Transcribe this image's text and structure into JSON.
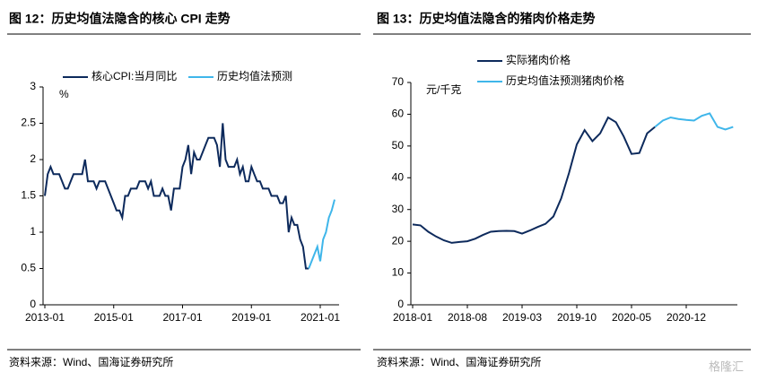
{
  "chart_data": [
    {
      "type": "line",
      "title": "图 12：历史均值法隐含的核心 CPI 走势",
      "y_label": "%",
      "legend": "top",
      "source": "资料来源：Wind、国海证券研究所",
      "x": [
        "2013-01",
        "2013-02",
        "2013-03",
        "2013-04",
        "2013-05",
        "2013-06",
        "2013-07",
        "2013-08",
        "2013-09",
        "2013-10",
        "2013-11",
        "2013-12",
        "2014-01",
        "2014-02",
        "2014-03",
        "2014-04",
        "2014-05",
        "2014-06",
        "2014-07",
        "2014-08",
        "2014-09",
        "2014-10",
        "2014-11",
        "2014-12",
        "2015-01",
        "2015-02",
        "2015-03",
        "2015-04",
        "2015-05",
        "2015-06",
        "2015-07",
        "2015-08",
        "2015-09",
        "2015-10",
        "2015-11",
        "2015-12",
        "2016-01",
        "2016-02",
        "2016-03",
        "2016-04",
        "2016-05",
        "2016-06",
        "2016-07",
        "2016-08",
        "2016-09",
        "2016-10",
        "2016-11",
        "2016-12",
        "2017-01",
        "2017-02",
        "2017-03",
        "2017-04",
        "2017-05",
        "2017-06",
        "2017-07",
        "2017-08",
        "2017-09",
        "2017-10",
        "2017-11",
        "2017-12",
        "2018-01",
        "2018-02",
        "2018-03",
        "2018-04",
        "2018-05",
        "2018-06",
        "2018-07",
        "2018-08",
        "2018-09",
        "2018-10",
        "2018-11",
        "2018-12",
        "2019-01",
        "2019-02",
        "2019-03",
        "2019-04",
        "2019-05",
        "2019-06",
        "2019-07",
        "2019-08",
        "2019-09",
        "2019-10",
        "2019-11",
        "2019-12",
        "2020-01",
        "2020-02",
        "2020-03",
        "2020-04",
        "2020-05",
        "2020-06",
        "2020-07",
        "2020-08",
        "2020-09",
        "2020-10",
        "2020-11",
        "2020-12",
        "2021-01",
        "2021-02",
        "2021-03",
        "2021-04",
        "2021-05",
        "2021-06"
      ],
      "xticks": [
        "2013-01",
        "2015-01",
        "2017-01",
        "2019-01",
        "2021-01"
      ],
      "ylim": [
        0,
        3
      ],
      "yticks": [
        0,
        0.5,
        1,
        1.5,
        2,
        2.5,
        3
      ],
      "series": [
        {
          "name": "核心CPI:当月同比",
          "color": "#0d2a5c",
          "values": [
            1.5,
            1.8,
            1.9,
            1.8,
            1.8,
            1.8,
            1.7,
            1.6,
            1.6,
            1.7,
            1.8,
            1.8,
            1.8,
            1.8,
            2.0,
            1.7,
            1.7,
            1.7,
            1.6,
            1.7,
            1.7,
            1.7,
            1.6,
            1.5,
            1.4,
            1.3,
            1.3,
            1.2,
            1.5,
            1.5,
            1.6,
            1.6,
            1.6,
            1.7,
            1.7,
            1.7,
            1.6,
            1.7,
            1.5,
            1.5,
            1.5,
            1.6,
            1.5,
            1.5,
            1.3,
            1.6,
            1.6,
            1.6,
            1.9,
            2.0,
            2.2,
            1.8,
            2.1,
            2.0,
            2.0,
            2.1,
            2.2,
            2.3,
            2.3,
            2.3,
            2.2,
            1.9,
            2.5,
            2.0,
            1.9,
            1.9,
            1.9,
            2.0,
            1.8,
            1.9,
            1.7,
            1.7,
            1.9,
            1.8,
            1.7,
            1.7,
            1.6,
            1.6,
            1.6,
            1.5,
            1.5,
            1.5,
            1.4,
            1.4,
            1.5,
            1.0,
            1.2,
            1.1,
            1.1,
            0.9,
            0.8,
            0.5,
            0.5,
            null,
            null,
            null,
            null,
            null,
            null,
            null,
            null,
            null
          ]
        },
        {
          "name": "历史均值法预测",
          "color": "#3fb6ea",
          "values": [
            null,
            null,
            null,
            null,
            null,
            null,
            null,
            null,
            null,
            null,
            null,
            null,
            null,
            null,
            null,
            null,
            null,
            null,
            null,
            null,
            null,
            null,
            null,
            null,
            null,
            null,
            null,
            null,
            null,
            null,
            null,
            null,
            null,
            null,
            null,
            null,
            null,
            null,
            null,
            null,
            null,
            null,
            null,
            null,
            null,
            null,
            null,
            null,
            null,
            null,
            null,
            null,
            null,
            null,
            null,
            null,
            null,
            null,
            null,
            null,
            null,
            null,
            null,
            null,
            null,
            null,
            null,
            null,
            null,
            null,
            null,
            null,
            null,
            null,
            null,
            null,
            null,
            null,
            null,
            null,
            null,
            null,
            null,
            null,
            null,
            null,
            null,
            null,
            null,
            null,
            null,
            null,
            0.5,
            0.6,
            0.7,
            0.8,
            0.6,
            0.9,
            1.0,
            1.2,
            1.3,
            1.45
          ]
        }
      ]
    },
    {
      "type": "line",
      "title": "图 13：历史均值法隐含的猪肉价格走势",
      "y_label": "元/千克",
      "legend": "top",
      "source": "资料来源：Wind、国海证券研究所",
      "x": [
        "2018-01",
        "2018-02",
        "2018-03",
        "2018-04",
        "2018-05",
        "2018-06",
        "2018-07",
        "2018-08",
        "2018-09",
        "2018-10",
        "2018-11",
        "2018-12",
        "2019-01",
        "2019-02",
        "2019-03",
        "2019-04",
        "2019-05",
        "2019-06",
        "2019-07",
        "2019-08",
        "2019-09",
        "2019-10",
        "2019-11",
        "2019-12",
        "2020-01",
        "2020-02",
        "2020-03",
        "2020-04",
        "2020-05",
        "2020-06",
        "2020-07",
        "2020-08",
        "2020-09",
        "2020-10",
        "2020-11",
        "2020-12",
        "2021-01",
        "2021-02",
        "2021-03",
        "2021-04",
        "2021-05",
        "2021-06"
      ],
      "xticks": [
        "2018-01",
        "2018-08",
        "2019-03",
        "2019-10",
        "2020-05",
        "2020-12"
      ],
      "ylim": [
        0,
        70
      ],
      "yticks": [
        0,
        10,
        20,
        30,
        40,
        50,
        60,
        70
      ],
      "series": [
        {
          "name": "实际猪肉价格",
          "color": "#0d2a5c",
          "values": [
            25.3,
            25.0,
            23.0,
            21.5,
            20.3,
            19.5,
            19.8,
            20.0,
            20.8,
            22.0,
            23.0,
            23.2,
            23.3,
            23.2,
            22.4,
            23.4,
            24.5,
            25.5,
            27.8,
            33.5,
            41.5,
            50.5,
            55.0,
            51.5,
            54.0,
            59.0,
            57.5,
            53.0,
            47.5,
            47.8,
            54.0,
            56.0,
            null,
            null,
            null,
            null,
            null,
            null,
            null,
            null,
            null,
            null
          ]
        },
        {
          "name": "历史均值法预测猪肉价格",
          "color": "#3fb6ea",
          "values": [
            null,
            null,
            null,
            null,
            null,
            null,
            null,
            null,
            null,
            null,
            null,
            null,
            null,
            null,
            null,
            null,
            null,
            null,
            null,
            null,
            null,
            null,
            null,
            null,
            null,
            null,
            null,
            null,
            null,
            null,
            null,
            56.0,
            58.0,
            59.0,
            58.5,
            58.2,
            58.0,
            59.5,
            60.3,
            56.0,
            55.2,
            56.0
          ]
        }
      ]
    }
  ],
  "watermark": "格隆汇"
}
